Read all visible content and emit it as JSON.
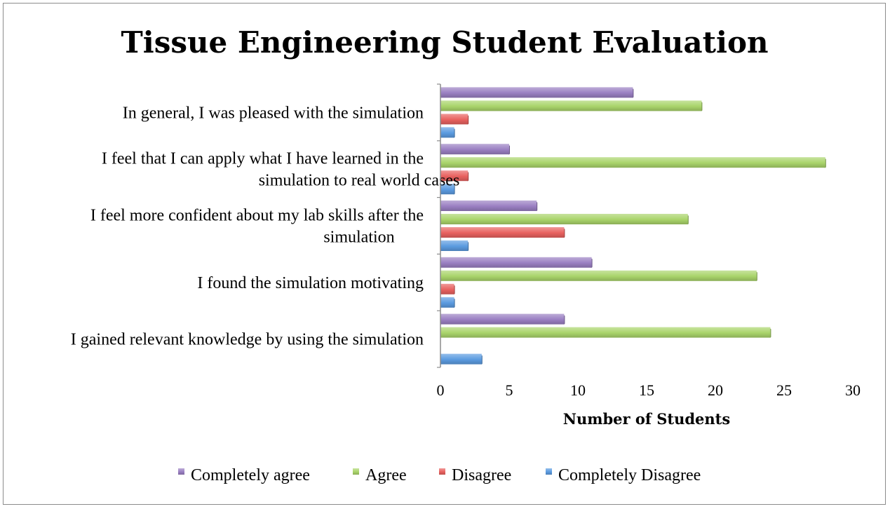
{
  "chart_data": {
    "type": "bar",
    "orientation": "horizontal",
    "title": "Tissue Engineering Student Evaluation",
    "xlabel": "Number of Students",
    "ylabel": "",
    "xlim": [
      0,
      30
    ],
    "x_ticks": [
      "0",
      "5",
      "10",
      "15",
      "20",
      "25",
      "30"
    ],
    "categories": [
      [
        "In general, I was pleased with the simulation"
      ],
      [
        "I feel that I can apply what I have learned in the",
        "simulation to real world cases"
      ],
      [
        "I feel more confident about my lab skills after the",
        "simulation"
      ],
      [
        "I found the simulation motivating"
      ],
      [
        "I gained relevant knowledge by using the simulation"
      ]
    ],
    "series": [
      {
        "name": "Completely agree",
        "color": "#9a7fc2",
        "values": [
          14,
          5,
          7,
          11,
          9
        ]
      },
      {
        "name": "Agree",
        "color": "#a9d46a",
        "values": [
          19,
          28,
          18,
          23,
          24
        ]
      },
      {
        "name": "Disagree",
        "color": "#e8615f",
        "values": [
          2,
          2,
          9,
          1,
          0
        ]
      },
      {
        "name": "Completely Disagree",
        "color": "#5b9be0",
        "values": [
          1,
          1,
          2,
          1,
          3
        ]
      }
    ],
    "grid": false,
    "legend_position": "bottom"
  }
}
